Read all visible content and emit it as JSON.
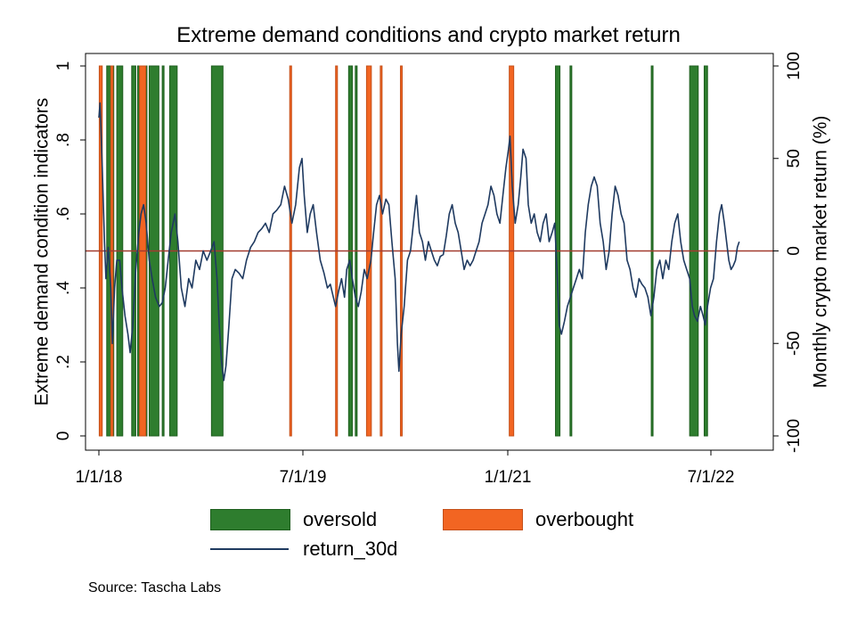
{
  "chart_data": {
    "type": "bar+line",
    "title": "Extreme demand conditions and crypto market return",
    "ylabel_left": "Extreme demand condition indicators",
    "ylabel_right": "Monthly crypto market return (%)",
    "xlabel": "",
    "x_ticks": [
      "1/1/18",
      "7/1/19",
      "1/1/21",
      "7/1/22"
    ],
    "y_left_ticks": [
      "0",
      ".2",
      ".4",
      ".6",
      ".8",
      "1"
    ],
    "y_left_range": [
      0,
      1
    ],
    "y_right_ticks": [
      "-100",
      "-50",
      "0",
      "50",
      "100"
    ],
    "y_right_range": [
      -100,
      100
    ],
    "x_range": [
      "2018-01-01",
      "2022-09-15"
    ],
    "zero_line_right": 0,
    "zero_line_color": "#a23b2f",
    "series": [
      {
        "name": "oversold",
        "color": "#2e7d2e",
        "value": 1,
        "periods": [
          [
            "2018-01-22",
            "2018-02-10"
          ],
          [
            "2018-02-18",
            "2018-03-06"
          ],
          [
            "2018-03-30",
            "2018-04-10"
          ],
          [
            "2018-04-15",
            "2018-04-18"
          ],
          [
            "2018-04-28",
            "2018-05-10"
          ],
          [
            "2018-05-16",
            "2018-06-11"
          ],
          [
            "2018-06-20",
            "2018-06-22"
          ],
          [
            "2018-07-10",
            "2018-07-30"
          ],
          [
            "2018-10-30",
            "2018-11-30"
          ],
          [
            "2019-11-02",
            "2019-11-12"
          ],
          [
            "2019-11-20",
            "2019-11-23"
          ],
          [
            "2021-05-10",
            "2021-05-22"
          ],
          [
            "2021-06-18",
            "2021-06-22"
          ],
          [
            "2022-01-22",
            "2022-01-23"
          ],
          [
            "2022-05-05",
            "2022-05-28"
          ],
          [
            "2022-06-13",
            "2022-06-22"
          ]
        ]
      },
      {
        "name": "overbought",
        "color": "#f26522",
        "value": 1,
        "periods": [
          [
            "2018-01-02",
            "2018-01-10"
          ],
          [
            "2018-02-02",
            "2018-02-08"
          ],
          [
            "2018-04-20",
            "2018-05-07"
          ],
          [
            "2019-05-28",
            "2019-06-02"
          ],
          [
            "2019-09-28",
            "2019-10-03"
          ],
          [
            "2019-12-20",
            "2020-01-02"
          ],
          [
            "2020-01-26",
            "2020-01-27"
          ],
          [
            "2020-03-20",
            "2020-03-21"
          ],
          [
            "2021-01-06",
            "2021-01-18"
          ]
        ]
      },
      {
        "name": "return_30d",
        "color": "#1f3a60",
        "axis": "right",
        "points": [
          [
            "2018-01-01",
            72
          ],
          [
            "2018-01-04",
            80
          ],
          [
            "2018-01-10",
            45
          ],
          [
            "2018-01-16",
            5
          ],
          [
            "2018-01-20",
            -15
          ],
          [
            "2018-01-26",
            2
          ],
          [
            "2018-02-02",
            -20
          ],
          [
            "2018-02-06",
            -50
          ],
          [
            "2018-02-12",
            -20
          ],
          [
            "2018-02-18",
            -5
          ],
          [
            "2018-02-26",
            -5
          ],
          [
            "2018-03-04",
            -20
          ],
          [
            "2018-03-12",
            -35
          ],
          [
            "2018-03-20",
            -45
          ],
          [
            "2018-03-26",
            -55
          ],
          [
            "2018-04-02",
            -40
          ],
          [
            "2018-04-10",
            -10
          ],
          [
            "2018-04-18",
            10
          ],
          [
            "2018-04-24",
            20
          ],
          [
            "2018-05-01",
            25
          ],
          [
            "2018-05-08",
            15
          ],
          [
            "2018-05-16",
            -5
          ],
          [
            "2018-05-24",
            -15
          ],
          [
            "2018-06-02",
            -25
          ],
          [
            "2018-06-12",
            -30
          ],
          [
            "2018-06-20",
            -28
          ],
          [
            "2018-06-28",
            -20
          ],
          [
            "2018-07-06",
            -5
          ],
          [
            "2018-07-14",
            10
          ],
          [
            "2018-07-24",
            20
          ],
          [
            "2018-08-01",
            5
          ],
          [
            "2018-08-10",
            -20
          ],
          [
            "2018-08-20",
            -30
          ],
          [
            "2018-08-30",
            -15
          ],
          [
            "2018-09-08",
            -20
          ],
          [
            "2018-09-18",
            -5
          ],
          [
            "2018-09-28",
            -10
          ],
          [
            "2018-10-08",
            0
          ],
          [
            "2018-10-18",
            -5
          ],
          [
            "2018-10-28",
            0
          ],
          [
            "2018-11-06",
            5
          ],
          [
            "2018-11-14",
            -15
          ],
          [
            "2018-11-20",
            -40
          ],
          [
            "2018-11-26",
            -60
          ],
          [
            "2018-12-02",
            -70
          ],
          [
            "2018-12-08",
            -62
          ],
          [
            "2018-12-16",
            -40
          ],
          [
            "2018-12-24",
            -15
          ],
          [
            "2019-01-02",
            -10
          ],
          [
            "2019-01-12",
            -12
          ],
          [
            "2019-01-22",
            -15
          ],
          [
            "2019-02-01",
            -5
          ],
          [
            "2019-02-12",
            2
          ],
          [
            "2019-02-22",
            5
          ],
          [
            "2019-03-04",
            10
          ],
          [
            "2019-03-14",
            12
          ],
          [
            "2019-03-24",
            15
          ],
          [
            "2019-04-03",
            10
          ],
          [
            "2019-04-13",
            20
          ],
          [
            "2019-04-23",
            22
          ],
          [
            "2019-05-04",
            25
          ],
          [
            "2019-05-14",
            35
          ],
          [
            "2019-05-24",
            28
          ],
          [
            "2019-06-03",
            15
          ],
          [
            "2019-06-13",
            25
          ],
          [
            "2019-06-23",
            45
          ],
          [
            "2019-06-30",
            50
          ],
          [
            "2019-07-06",
            30
          ],
          [
            "2019-07-14",
            10
          ],
          [
            "2019-07-22",
            20
          ],
          [
            "2019-07-30",
            25
          ],
          [
            "2019-08-08",
            10
          ],
          [
            "2019-08-18",
            -5
          ],
          [
            "2019-08-28",
            -12
          ],
          [
            "2019-09-06",
            -20
          ],
          [
            "2019-09-14",
            -18
          ],
          [
            "2019-09-22",
            -25
          ],
          [
            "2019-09-28",
            -30
          ],
          [
            "2019-10-06",
            -22
          ],
          [
            "2019-10-14",
            -15
          ],
          [
            "2019-10-22",
            -25
          ],
          [
            "2019-10-28",
            -10
          ],
          [
            "2019-11-05",
            -5
          ],
          [
            "2019-11-12",
            -15
          ],
          [
            "2019-11-20",
            -25
          ],
          [
            "2019-11-28",
            -30
          ],
          [
            "2019-12-06",
            -22
          ],
          [
            "2019-12-14",
            -10
          ],
          [
            "2019-12-22",
            -15
          ],
          [
            "2020-01-01",
            -5
          ],
          [
            "2020-01-08",
            10
          ],
          [
            "2020-01-16",
            25
          ],
          [
            "2020-01-24",
            30
          ],
          [
            "2020-02-01",
            20
          ],
          [
            "2020-02-10",
            28
          ],
          [
            "2020-02-18",
            25
          ],
          [
            "2020-02-26",
            5
          ],
          [
            "2020-03-06",
            -15
          ],
          [
            "2020-03-12",
            -50
          ],
          [
            "2020-03-16",
            -65
          ],
          [
            "2020-03-22",
            -45
          ],
          [
            "2020-03-30",
            -30
          ],
          [
            "2020-04-08",
            -5
          ],
          [
            "2020-04-16",
            0
          ],
          [
            "2020-04-24",
            15
          ],
          [
            "2020-05-02",
            30
          ],
          [
            "2020-05-10",
            10
          ],
          [
            "2020-05-18",
            5
          ],
          [
            "2020-05-26",
            -5
          ],
          [
            "2020-06-03",
            5
          ],
          [
            "2020-06-11",
            0
          ],
          [
            "2020-06-19",
            -5
          ],
          [
            "2020-06-27",
            -8
          ],
          [
            "2020-07-05",
            -3
          ],
          [
            "2020-07-13",
            -2
          ],
          [
            "2020-07-21",
            8
          ],
          [
            "2020-07-29",
            20
          ],
          [
            "2020-08-06",
            25
          ],
          [
            "2020-08-14",
            15
          ],
          [
            "2020-08-22",
            10
          ],
          [
            "2020-08-30",
            0
          ],
          [
            "2020-09-07",
            -10
          ],
          [
            "2020-09-15",
            -5
          ],
          [
            "2020-09-23",
            -8
          ],
          [
            "2020-10-01",
            -5
          ],
          [
            "2020-10-09",
            0
          ],
          [
            "2020-10-17",
            5
          ],
          [
            "2020-10-25",
            15
          ],
          [
            "2020-11-02",
            20
          ],
          [
            "2020-11-10",
            25
          ],
          [
            "2020-11-18",
            35
          ],
          [
            "2020-11-26",
            30
          ],
          [
            "2020-12-04",
            20
          ],
          [
            "2020-12-12",
            15
          ],
          [
            "2020-12-20",
            30
          ],
          [
            "2020-12-28",
            45
          ],
          [
            "2021-01-04",
            55
          ],
          [
            "2021-01-08",
            62
          ],
          [
            "2021-01-14",
            35
          ],
          [
            "2021-01-22",
            15
          ],
          [
            "2021-01-30",
            25
          ],
          [
            "2021-02-06",
            40
          ],
          [
            "2021-02-12",
            55
          ],
          [
            "2021-02-20",
            50
          ],
          [
            "2021-02-26",
            25
          ],
          [
            "2021-03-06",
            15
          ],
          [
            "2021-03-14",
            20
          ],
          [
            "2021-03-22",
            10
          ],
          [
            "2021-03-30",
            5
          ],
          [
            "2021-04-07",
            15
          ],
          [
            "2021-04-15",
            20
          ],
          [
            "2021-04-23",
            5
          ],
          [
            "2021-05-01",
            10
          ],
          [
            "2021-05-08",
            15
          ],
          [
            "2021-05-14",
            -10
          ],
          [
            "2021-05-20",
            -40
          ],
          [
            "2021-05-26",
            -45
          ],
          [
            "2021-06-03",
            -38
          ],
          [
            "2021-06-11",
            -30
          ],
          [
            "2021-06-19",
            -25
          ],
          [
            "2021-06-27",
            -20
          ],
          [
            "2021-07-05",
            -15
          ],
          [
            "2021-07-13",
            -10
          ],
          [
            "2021-07-21",
            -15
          ],
          [
            "2021-07-29",
            10
          ],
          [
            "2021-08-06",
            25
          ],
          [
            "2021-08-14",
            35
          ],
          [
            "2021-08-22",
            40
          ],
          [
            "2021-08-30",
            35
          ],
          [
            "2021-09-07",
            15
          ],
          [
            "2021-09-15",
            5
          ],
          [
            "2021-09-23",
            -10
          ],
          [
            "2021-10-01",
            0
          ],
          [
            "2021-10-09",
            20
          ],
          [
            "2021-10-17",
            35
          ],
          [
            "2021-10-25",
            30
          ],
          [
            "2021-11-02",
            20
          ],
          [
            "2021-11-10",
            15
          ],
          [
            "2021-11-18",
            -5
          ],
          [
            "2021-11-26",
            -10
          ],
          [
            "2021-12-04",
            -20
          ],
          [
            "2021-12-12",
            -25
          ],
          [
            "2021-12-20",
            -15
          ],
          [
            "2021-12-28",
            -18
          ],
          [
            "2022-01-05",
            -20
          ],
          [
            "2022-01-13",
            -25
          ],
          [
            "2022-01-21",
            -35
          ],
          [
            "2022-01-29",
            -25
          ],
          [
            "2022-02-06",
            -10
          ],
          [
            "2022-02-14",
            -5
          ],
          [
            "2022-02-22",
            -15
          ],
          [
            "2022-03-02",
            -5
          ],
          [
            "2022-03-10",
            -10
          ],
          [
            "2022-03-18",
            5
          ],
          [
            "2022-03-26",
            15
          ],
          [
            "2022-04-03",
            20
          ],
          [
            "2022-04-11",
            5
          ],
          [
            "2022-04-19",
            -5
          ],
          [
            "2022-04-27",
            -10
          ],
          [
            "2022-05-05",
            -15
          ],
          [
            "2022-05-12",
            -30
          ],
          [
            "2022-05-18",
            -35
          ],
          [
            "2022-05-26",
            -38
          ],
          [
            "2022-06-03",
            -30
          ],
          [
            "2022-06-10",
            -35
          ],
          [
            "2022-06-16",
            -40
          ],
          [
            "2022-06-22",
            -30
          ],
          [
            "2022-06-30",
            -20
          ],
          [
            "2022-07-08",
            -15
          ],
          [
            "2022-07-16",
            5
          ],
          [
            "2022-07-24",
            20
          ],
          [
            "2022-07-30",
            25
          ],
          [
            "2022-08-06",
            15
          ],
          [
            "2022-08-12",
            5
          ],
          [
            "2022-08-18",
            -5
          ],
          [
            "2022-08-24",
            -10
          ],
          [
            "2022-08-30",
            -8
          ],
          [
            "2022-09-05",
            -5
          ],
          [
            "2022-09-10",
            2
          ],
          [
            "2022-09-15",
            5
          ]
        ]
      }
    ],
    "legend": [
      {
        "label": "oversold",
        "kind": "box",
        "color": "#2e7d2e"
      },
      {
        "label": "overbought",
        "kind": "box",
        "color": "#f26522"
      },
      {
        "label": "return_30d",
        "kind": "line",
        "color": "#1f3a60"
      }
    ],
    "legend_position": "bottom"
  },
  "source": "Source: Tascha Labs"
}
